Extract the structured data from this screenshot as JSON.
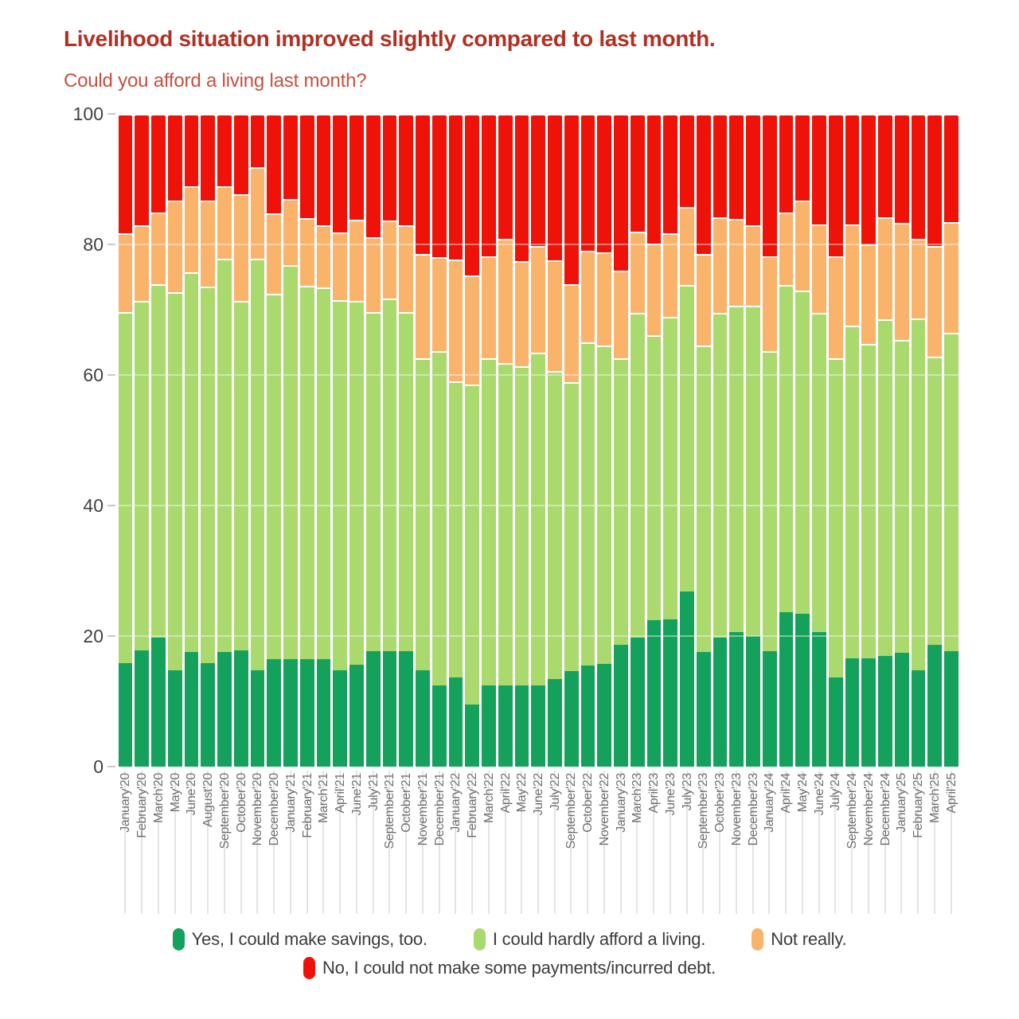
{
  "header": {
    "title": "Livelihood situation improved slightly compared to last month.",
    "subtitle": "Could you afford a living last month?"
  },
  "colors": {
    "title": "#b23022",
    "subtitle": "#c8503c",
    "y_label": "#414141",
    "x_label": "#6f6f6f",
    "grid_behind": "#ececec",
    "grid_over": "rgba(255,255,255,0.42)",
    "tick_stripe": "#e4e4e4"
  },
  "chart_data": {
    "type": "bar",
    "stacked": true,
    "title": "Livelihood situation improved slightly compared to last month.",
    "question": "Could you afford a living last month?",
    "ylim": [
      0,
      100
    ],
    "y_ticks": [
      0,
      20,
      40,
      60,
      80,
      100
    ],
    "grid": "horizontal",
    "legend_position": "bottom",
    "categories": [
      "January'20",
      "February'20",
      "March'20",
      "May'20",
      "June'20",
      "August'20",
      "September'20",
      "October'20",
      "November'20",
      "December'20",
      "January'21",
      "February'21",
      "March'21",
      "April'21",
      "June'21",
      "July'21",
      "September'21",
      "October'21",
      "November'21",
      "December'21",
      "January'22",
      "February'22",
      "March'22",
      "April'22",
      "May'22",
      "June'22",
      "July'22",
      "September'22",
      "October'22",
      "November'22",
      "January'23",
      "March'23",
      "April'23",
      "June'23",
      "July'23",
      "September'23",
      "October'23",
      "November'23",
      "December'23",
      "January'24",
      "April'24",
      "May'24",
      "June'24",
      "July'24",
      "September'24",
      "November'24",
      "December'24",
      "January'25",
      "February'25",
      "March'25",
      "April'25"
    ],
    "series": [
      {
        "name": "Yes, I could make savings, too.",
        "color": "#13a15c",
        "values": [
          15.8,
          17.8,
          19.8,
          14.7,
          17.6,
          15.9,
          17.6,
          17.8,
          14.7,
          16.5,
          16.5,
          16.5,
          16.5,
          14.7,
          15.6,
          17.7,
          17.7,
          17.7,
          14.7,
          12.4,
          13.7,
          9.5,
          12.4,
          12.4,
          12.4,
          12.4,
          13.4,
          14.6,
          15.5,
          15.7,
          18.6,
          19.8,
          22.4,
          22.6,
          26.8,
          17.6,
          19.7,
          20.6,
          20.0,
          17.7,
          23.6,
          23.4,
          20.6,
          13.6,
          16.6,
          16.6,
          16.9,
          17.5,
          14.7,
          18.7,
          17.7
        ]
      },
      {
        "name": "I could hardly afford a living.",
        "color": "#aad96e",
        "values": [
          53.8,
          53.6,
          54.1,
          58.0,
          58.1,
          57.6,
          60.2,
          53.6,
          63.1,
          56.0,
          60.3,
          57.2,
          56.9,
          56.8,
          55.8,
          51.9,
          54.0,
          51.9,
          47.9,
          51.3,
          45.3,
          49.0,
          50.2,
          49.4,
          48.9,
          51.0,
          47.2,
          44.3,
          49.5,
          48.8,
          44.0,
          49.7,
          43.7,
          46.3,
          47.0,
          46.9,
          49.8,
          50.0,
          50.6,
          46.0,
          50.2,
          49.5,
          48.9,
          49.0,
          51.0,
          48.2,
          51.6,
          47.9,
          54.0,
          44.1,
          48.8
        ]
      },
      {
        "name": "Not really.",
        "color": "#fab36a",
        "values": [
          12.1,
          11.5,
          11.0,
          14.0,
          13.2,
          13.2,
          11.1,
          16.3,
          14.0,
          12.3,
          10.2,
          10.3,
          9.5,
          10.3,
          12.4,
          11.5,
          12.0,
          13.3,
          16.0,
          14.4,
          18.7,
          16.7,
          15.6,
          19.1,
          16.1,
          16.4,
          17.0,
          15.0,
          14.0,
          14.3,
          13.4,
          12.4,
          14.0,
          12.8,
          11.9,
          14.0,
          14.6,
          13.3,
          12.3,
          14.5,
          11.1,
          13.8,
          13.5,
          15.6,
          15.5,
          15.2,
          15.7,
          17.9,
          12.2,
          17.0,
          16.9
        ]
      },
      {
        "name": "No, I could not make some payments/incurred debt.",
        "color": "#ee1208",
        "values": [
          18.3,
          17.1,
          15.1,
          13.3,
          11.1,
          13.3,
          11.1,
          12.3,
          8.2,
          15.2,
          13.0,
          16.0,
          17.1,
          18.2,
          16.2,
          18.9,
          16.3,
          17.1,
          21.4,
          21.9,
          22.3,
          24.8,
          21.8,
          19.1,
          22.6,
          20.2,
          22.4,
          26.1,
          21.0,
          21.2,
          24.0,
          18.1,
          19.9,
          18.3,
          14.3,
          21.5,
          15.9,
          16.1,
          17.1,
          21.8,
          15.1,
          13.3,
          17.0,
          21.8,
          16.9,
          20.0,
          15.8,
          16.7,
          19.1,
          20.2,
          16.6
        ]
      }
    ]
  }
}
